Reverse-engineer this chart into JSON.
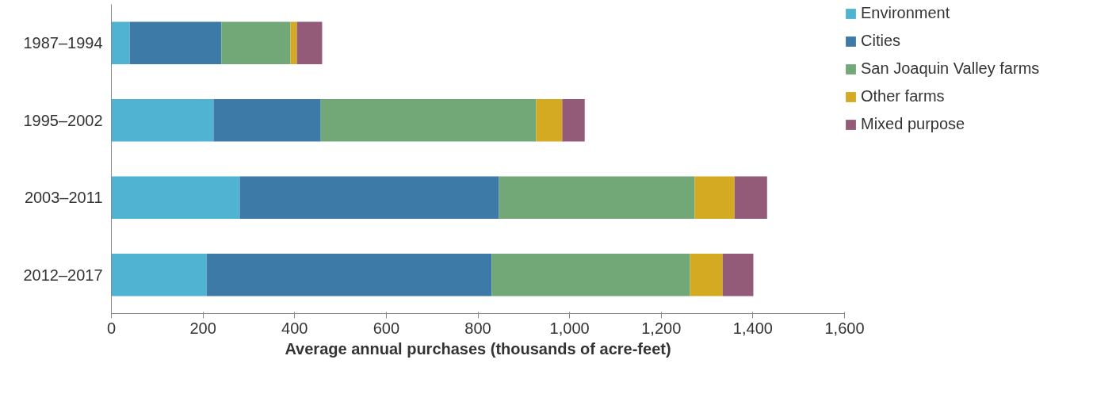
{
  "chart_data": {
    "type": "bar",
    "orientation": "horizontal",
    "stacked": true,
    "xlabel": "Average annual purchases (thousands of acre-feet)",
    "categories": [
      "1987–1994",
      "1995–2002",
      "2003–2011",
      "2012–2017"
    ],
    "series": [
      {
        "name": "Environment",
        "color": "#4fb3d1",
        "values": [
          40,
          223,
          280,
          208
        ]
      },
      {
        "name": "Cities",
        "color": "#3d7aa8",
        "values": [
          200,
          234,
          566,
          622
        ]
      },
      {
        "name": "San Joaquin Valley farms",
        "color": "#72a878",
        "values": [
          151,
          470,
          427,
          433
        ]
      },
      {
        "name": "Other farms",
        "color": "#d4aa22",
        "values": [
          14,
          57,
          87,
          71
        ]
      },
      {
        "name": "Mixed purpose",
        "color": "#935b78",
        "values": [
          55,
          49,
          71,
          67
        ]
      }
    ],
    "xlim": [
      0,
      1600
    ],
    "xticks": [
      0,
      200,
      400,
      600,
      800,
      {
        "value": 1000,
        "label": "1,000"
      },
      {
        "value": 1200,
        "label": "1,200"
      },
      {
        "value": 1400,
        "label": "1,400"
      },
      {
        "value": 1600,
        "label": "1,600"
      }
    ],
    "grid": false,
    "legend": "right"
  }
}
